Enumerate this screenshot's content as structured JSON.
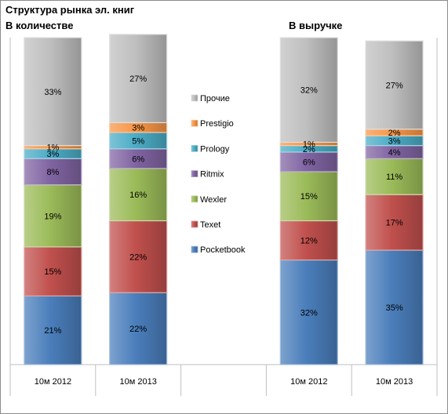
{
  "chart_data": {
    "type": "bar",
    "stacked": true,
    "normalized_percent": true,
    "title": "Структура рынка эл. книг",
    "groups": [
      {
        "label": "В количестве",
        "categories": [
          "10м 2012",
          "10м 2013"
        ]
      },
      {
        "label": "В выручке",
        "categories": [
          "10м 2012",
          "10м 2013"
        ]
      }
    ],
    "categories": [
      "10м 2012",
      "10м 2013",
      "10м 2012",
      "10м 2013"
    ],
    "series": [
      {
        "name": "Pocketbook",
        "color": "#4a7ebb",
        "values": [
          21,
          22,
          32,
          35
        ]
      },
      {
        "name": "Texet",
        "color": "#c0504d",
        "values": [
          15,
          22,
          12,
          17
        ]
      },
      {
        "name": "Wexler",
        "color": "#9bbb59",
        "values": [
          19,
          16,
          15,
          11
        ]
      },
      {
        "name": "Ritmix",
        "color": "#8064a2",
        "values": [
          8,
          6,
          6,
          4
        ]
      },
      {
        "name": "Prology",
        "color": "#4bacc6",
        "values": [
          3,
          5,
          2,
          3
        ]
      },
      {
        "name": "Prestigio",
        "color": "#f79646",
        "values": [
          1,
          3,
          1,
          2
        ]
      },
      {
        "name": "Прочие",
        "color": "#bfbfbf",
        "values": [
          33,
          27,
          32,
          27
        ]
      }
    ],
    "legend_position": "center",
    "grid": false,
    "ylim": [
      0,
      100
    ]
  }
}
